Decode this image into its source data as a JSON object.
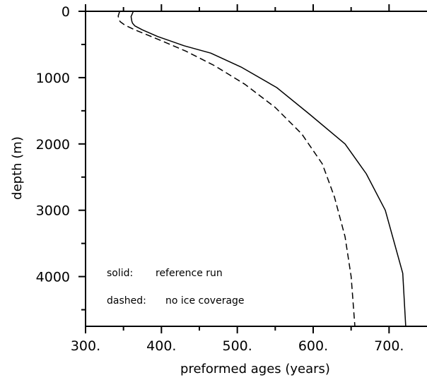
{
  "chart_data": {
    "type": "line",
    "xlabel": "preformed ages (years)",
    "ylabel": "depth (m)",
    "xlim": [
      300,
      750
    ],
    "ylim": [
      0,
      4750
    ],
    "y_inverted": true,
    "x_tick_labels": [
      "300.",
      "400.",
      "500.",
      "600.",
      "700."
    ],
    "x_tick_values": [
      300,
      400,
      500,
      600,
      700
    ],
    "x_minor_ticks": [
      350,
      450,
      550,
      650
    ],
    "y_tick_labels": [
      "0",
      "1000",
      "2000",
      "3000",
      "4000"
    ],
    "y_tick_values": [
      0,
      1000,
      2000,
      3000,
      4000
    ],
    "y_minor_ticks": [
      500,
      1500,
      2500,
      3500,
      4500
    ],
    "grid": false,
    "legend": "none",
    "annotations": [
      {
        "label": "solid:",
        "text": "reference run"
      },
      {
        "label": "dashed:",
        "text": "no ice coverage"
      }
    ],
    "series": [
      {
        "style": "solid",
        "x": [
          363,
          360,
          361,
          362,
          365,
          375,
          395,
          430,
          465,
          505,
          552,
          595,
          642,
          670,
          695,
          718,
          722
        ],
        "y": [
          0,
          80,
          150,
          180,
          220,
          280,
          380,
          520,
          630,
          840,
          1150,
          1550,
          2000,
          2450,
          3000,
          3950,
          4750
        ]
      },
      {
        "style": "dashed",
        "x": [
          345,
          343,
          344,
          346,
          352,
          365,
          395,
          432,
          470,
          510,
          550,
          585,
          612,
          628,
          642,
          650,
          655
        ],
        "y": [
          0,
          70,
          130,
          160,
          210,
          280,
          420,
          600,
          820,
          1100,
          1450,
          1850,
          2300,
          2800,
          3400,
          4000,
          4750
        ]
      }
    ]
  }
}
